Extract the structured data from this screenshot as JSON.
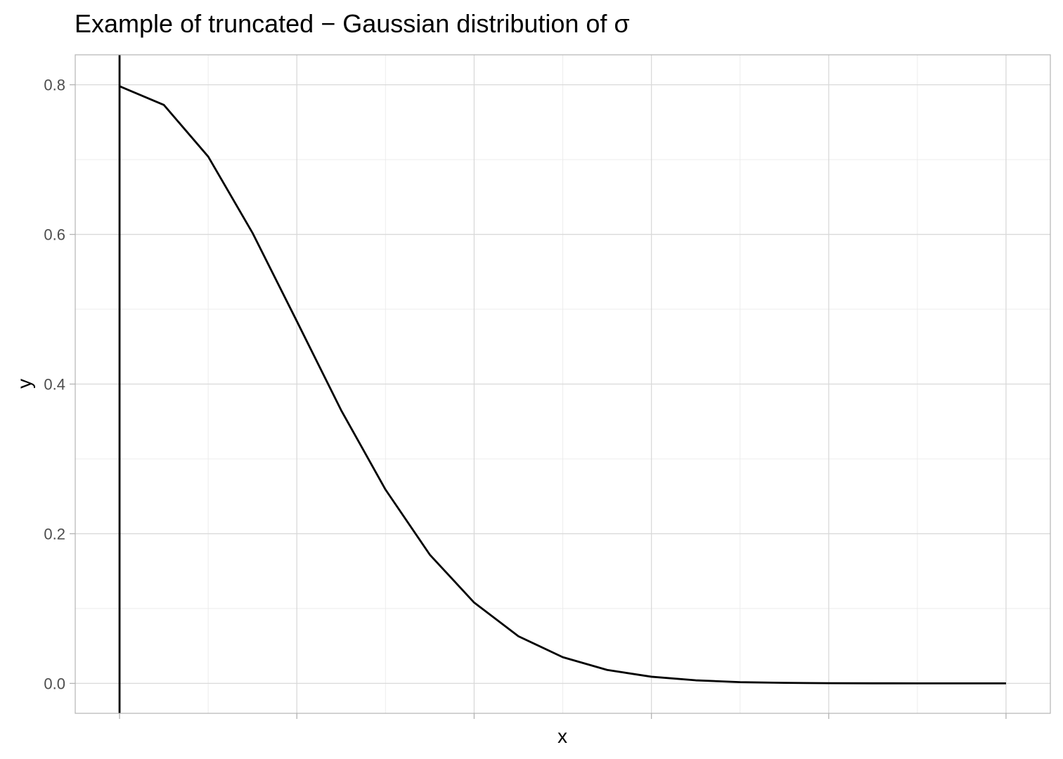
{
  "chart_data": {
    "type": "line",
    "title": "Example of truncated − Gaussian distribution of σ",
    "xlabel": "x",
    "ylabel": "y",
    "x_tick_labels_shown": false,
    "xlim": [
      -0.25,
      5.25
    ],
    "ylim": [
      -0.04,
      0.84
    ],
    "y_ticks": [
      0.0,
      0.2,
      0.4,
      0.6,
      0.8
    ],
    "y_tick_labels": [
      "0.0",
      "0.2",
      "0.4",
      "0.6",
      "0.8"
    ],
    "x_major_ticks": [
      0,
      1,
      2,
      3,
      4,
      5
    ],
    "x_minor_grid": [
      0.5,
      1.5,
      2.5,
      3.5,
      4.5
    ],
    "y_minor_grid": [
      0.1,
      0.3,
      0.5,
      0.7
    ],
    "grid": true,
    "vline": {
      "x": 0,
      "color": "#000000"
    },
    "series": [
      {
        "color": "#000000",
        "x": [
          0,
          0.25,
          0.5,
          0.75,
          1,
          1.25,
          1.5,
          1.75,
          2,
          2.25,
          2.5,
          2.75,
          3,
          3.25,
          3.5,
          3.75,
          4,
          4.25,
          4.5,
          4.75,
          5
        ],
        "y": [
          0.798,
          0.773,
          0.704,
          0.602,
          0.484,
          0.365,
          0.259,
          0.172,
          0.108,
          0.063,
          0.035,
          0.018,
          0.0089,
          0.0041,
          0.0017,
          0.0007,
          0.0003,
          0.0001,
          4e-05,
          1e-05,
          3e-06
        ]
      }
    ]
  },
  "colors": {
    "background": "#ffffff",
    "panel_border": "#b3b3b3",
    "grid_major": "#d9d9d9",
    "grid_minor": "#ececec",
    "tick": "#b3b3b3"
  }
}
